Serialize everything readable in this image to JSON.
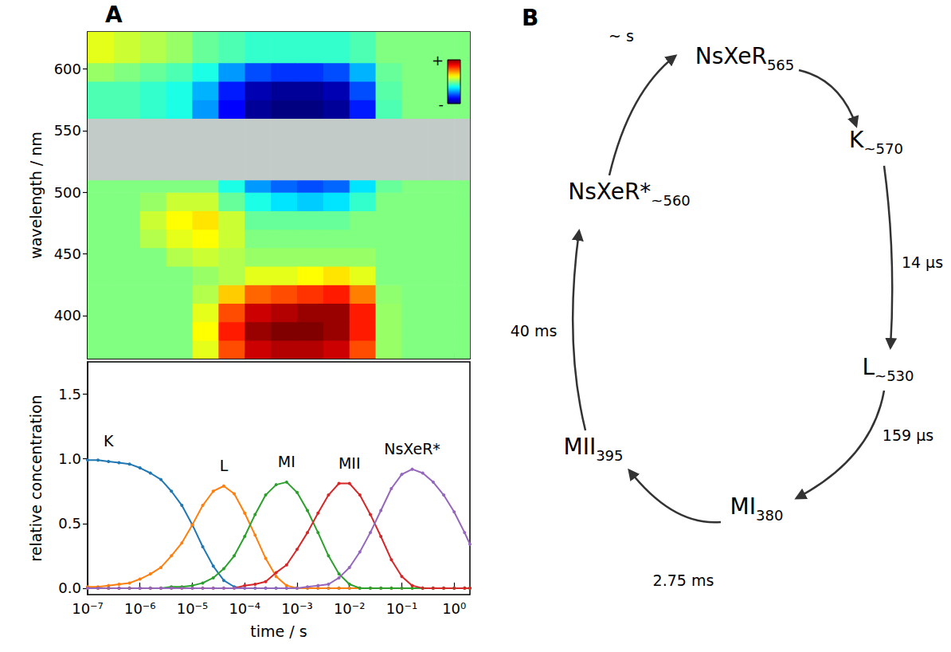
{
  "panel_labels": [
    "A",
    "B"
  ],
  "chart_data": [
    {
      "type": "heatmap",
      "y_label": "wavelength / nm",
      "log": "x",
      "xlim": [
        1e-07,
        2
      ],
      "xticks": [
        1e-07,
        1e-06,
        1e-05,
        0.0001,
        0.001,
        0.01,
        0.1,
        1
      ],
      "ylim": [
        365,
        630
      ],
      "yticks": [
        400,
        450,
        500,
        550,
        600
      ],
      "tick_labels": "y",
      "grid": false,
      "time_edges": [
        1e-07,
        3.16e-07,
        1e-06,
        3.16e-06,
        1e-05,
        3.16e-05,
        0.0001,
        0.000316,
        0.001,
        0.00316,
        0.01,
        0.0316,
        0.1,
        0.316,
        1,
        2
      ],
      "wavelength_edges": [
        365,
        380,
        395,
        410,
        425,
        440,
        455,
        470,
        485,
        500,
        510,
        560,
        575,
        590,
        605,
        630
      ],
      "cells": [
        [
          0,
          0,
          0,
          0,
          0.2,
          0.6,
          0.85,
          0.9,
          0.9,
          0.85,
          0.6,
          0.05,
          0,
          0,
          0
        ],
        [
          0,
          0,
          0,
          0,
          0.25,
          0.7,
          0.95,
          1,
          1,
          0.95,
          0.7,
          0.05,
          0,
          0,
          0
        ],
        [
          0,
          0,
          0,
          0,
          0.2,
          0.6,
          0.85,
          0.9,
          0.95,
          0.95,
          0.7,
          0.05,
          0,
          0,
          0
        ],
        [
          0,
          0,
          0,
          0,
          0.1,
          0.35,
          0.55,
          0.6,
          0.65,
          0.7,
          0.5,
          0.03,
          0,
          0,
          0
        ],
        [
          0,
          0,
          0,
          0,
          0.05,
          0.1,
          0.2,
          0.2,
          0.25,
          0.3,
          0.2,
          0,
          0,
          0,
          0
        ],
        [
          0,
          0,
          0,
          0.1,
          0.15,
          0.1,
          0.05,
          0.05,
          0.05,
          0.05,
          0.05,
          0,
          0,
          0,
          0
        ],
        [
          0,
          0,
          0.1,
          0.2,
          0.25,
          0.15,
          0,
          0,
          0,
          0,
          0,
          0,
          0,
          0,
          0
        ],
        [
          0,
          0,
          0.15,
          0.25,
          0.3,
          0.15,
          -0.05,
          -0.05,
          -0.05,
          -0.05,
          0,
          0,
          0,
          0,
          0
        ],
        [
          0,
          0,
          0.05,
          0.15,
          0.15,
          -0.05,
          -0.2,
          -0.3,
          -0.35,
          -0.3,
          -0.15,
          0,
          0,
          0,
          0
        ],
        [
          0,
          0,
          0,
          0,
          0,
          -0.2,
          -0.45,
          -0.55,
          -0.6,
          -0.55,
          -0.3,
          -0.05,
          0,
          0,
          0
        ],
        [
          null,
          null,
          null,
          null,
          null,
          null,
          null,
          null,
          null,
          null,
          null,
          null,
          null,
          null,
          null
        ],
        [
          -0.1,
          -0.1,
          -0.15,
          -0.2,
          -0.45,
          -0.75,
          -0.95,
          -1,
          -1,
          -0.95,
          -0.7,
          -0.1,
          0,
          0,
          0
        ],
        [
          -0.1,
          -0.1,
          -0.15,
          -0.2,
          -0.4,
          -0.7,
          -0.9,
          -0.95,
          -0.95,
          -0.9,
          -0.6,
          -0.08,
          0,
          0,
          0
        ],
        [
          0.05,
          0,
          -0.05,
          -0.1,
          -0.2,
          -0.45,
          -0.6,
          -0.65,
          -0.65,
          -0.6,
          -0.4,
          -0.05,
          0,
          0,
          0
        ],
        [
          0.2,
          0.15,
          0.1,
          0.05,
          -0.05,
          -0.1,
          -0.15,
          -0.15,
          -0.15,
          -0.15,
          -0.1,
          0,
          0,
          0,
          0
        ]
      ],
      "colorbar_range": [
        -1,
        1
      ],
      "colorbar_ticks": [
        {
          "value": 1,
          "label": "+"
        },
        {
          "value": -1,
          "label": "-"
        }
      ]
    },
    {
      "type": "line",
      "x_label": "time / s",
      "y_label": "relative concentration",
      "log": "x",
      "xlim": [
        1e-07,
        2
      ],
      "xticks": [
        {
          "value": 1e-07,
          "label": "10⁻⁷"
        },
        {
          "value": 1e-06,
          "label": "10⁻⁶"
        },
        {
          "value": 1e-05,
          "label": "10⁻⁵"
        },
        {
          "value": 0.0001,
          "label": "10⁻⁴"
        },
        {
          "value": 0.001,
          "label": "10⁻³"
        },
        {
          "value": 0.01,
          "label": "10⁻²"
        },
        {
          "value": 0.1,
          "label": "10⁻¹"
        },
        {
          "value": 1,
          "label": "10⁰"
        }
      ],
      "ylim": [
        -0.05,
        1.75
      ],
      "yticks": [
        {
          "value": 0,
          "label": "0.0"
        },
        0.5,
        {
          "value": 1,
          "label": "1.0"
        },
        1.5
      ],
      "grid": false,
      "marker": "circle",
      "line_style": "solid",
      "x": [
        1e-07,
        1.58e-07,
        2.51e-07,
        3.98e-07,
        6.31e-07,
        1e-06,
        1.58e-06,
        2.51e-06,
        3.98e-06,
        6.31e-06,
        1e-05,
        1.58e-05,
        2.51e-05,
        3.98e-05,
        6.31e-05,
        0.0001,
        0.000158,
        0.000251,
        0.000398,
        0.000631,
        0.001,
        0.00158,
        0.00251,
        0.00398,
        0.00631,
        0.01,
        0.0158,
        0.0251,
        0.0398,
        0.0631,
        0.1,
        0.158,
        0.251,
        0.398,
        0.631,
        1,
        1.58,
        2
      ],
      "series": [
        {
          "name": "K",
          "color": "#1f77b4",
          "values": [
            0.99,
            0.99,
            0.98,
            0.97,
            0.96,
            0.93,
            0.89,
            0.84,
            0.75,
            0.64,
            0.49,
            0.32,
            0.17,
            0.06,
            0.01,
            0,
            0,
            0,
            0,
            0,
            0,
            0,
            0,
            0,
            0,
            0,
            0,
            0,
            0,
            0,
            0,
            0,
            0,
            0,
            0,
            0,
            0,
            0
          ]
        },
        {
          "name": "L",
          "color": "#ff7f0e",
          "values": [
            0.01,
            0.01,
            0.02,
            0.03,
            0.04,
            0.07,
            0.11,
            0.16,
            0.25,
            0.35,
            0.49,
            0.64,
            0.75,
            0.79,
            0.73,
            0.58,
            0.41,
            0.23,
            0.09,
            0.02,
            0,
            0,
            0,
            0,
            0,
            0,
            0,
            0,
            0,
            0,
            0,
            0,
            0,
            0,
            0,
            0,
            0,
            0
          ]
        },
        {
          "name": "MI",
          "color": "#2ca02c",
          "values": [
            0,
            0,
            0,
            0,
            0,
            0,
            0,
            0,
            0.01,
            0.01,
            0.02,
            0.04,
            0.08,
            0.15,
            0.25,
            0.4,
            0.57,
            0.72,
            0.8,
            0.82,
            0.74,
            0.6,
            0.43,
            0.25,
            0.11,
            0.03,
            0,
            0,
            0,
            0,
            0,
            0,
            0,
            0,
            0,
            0,
            0,
            0
          ]
        },
        {
          "name": "MII",
          "color": "#d62728",
          "values": [
            0,
            0,
            0,
            0,
            0,
            0,
            0,
            0,
            0,
            0,
            0,
            0,
            0,
            0,
            0,
            0.02,
            0.03,
            0.05,
            0.12,
            0.18,
            0.3,
            0.43,
            0.58,
            0.72,
            0.81,
            0.81,
            0.72,
            0.57,
            0.4,
            0.22,
            0.09,
            0.02,
            0,
            0,
            0,
            0,
            0,
            0
          ]
        },
        {
          "name": "NsXeR*",
          "color": "#9467bd",
          "values": [
            0,
            0,
            0,
            0,
            0,
            0,
            0,
            0,
            0,
            0,
            0,
            0,
            0,
            0,
            0,
            0,
            0,
            0,
            0,
            0,
            0,
            0.01,
            0.02,
            0.03,
            0.08,
            0.16,
            0.28,
            0.43,
            0.6,
            0.77,
            0.88,
            0.92,
            0.89,
            0.82,
            0.72,
            0.59,
            0.43,
            0.34
          ]
        }
      ]
    }
  ],
  "diagram": {
    "nodes": [
      {
        "label": "NsXeR",
        "subscript": "565"
      },
      {
        "label": "K",
        "subscript": "~570"
      },
      {
        "label": "L",
        "subscript": "~530"
      },
      {
        "label": "MI",
        "subscript": "380"
      },
      {
        "label": "MII",
        "subscript": "395"
      },
      {
        "label": "NsXeR*",
        "subscript": "~560"
      }
    ],
    "edges": [
      {
        "from": 0,
        "to": 1
      },
      {
        "from": 1,
        "to": 2,
        "label": "14 µs"
      },
      {
        "from": 2,
        "to": 3,
        "label": "159 µs"
      },
      {
        "from": 3,
        "to": 4,
        "label": "2.75 ms"
      },
      {
        "from": 4,
        "to": 5,
        "label": "40 ms"
      },
      {
        "from": 5,
        "to": 0,
        "label": "~ s"
      }
    ]
  }
}
